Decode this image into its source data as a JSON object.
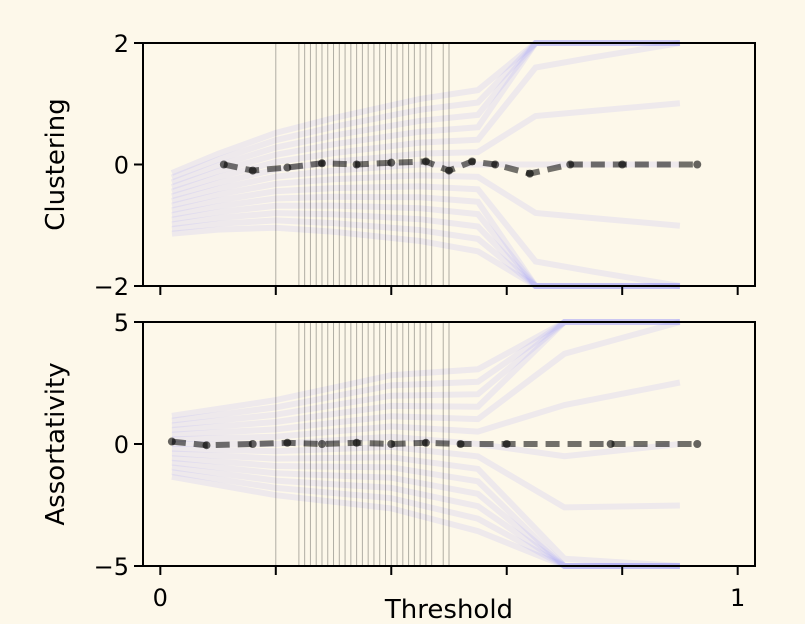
{
  "chart_data": [
    {
      "type": "line",
      "ylabel": "Clustering",
      "xlim": [
        -0.03,
        1.03
      ],
      "ylim": [
        -2,
        2
      ],
      "yticks": [
        2,
        0,
        -2
      ],
      "ytick_labels": [
        "2",
        "0",
        "−2"
      ],
      "xticks": [
        0,
        0.2,
        0.4,
        0.6,
        0.8,
        1.0
      ],
      "show_x_tick_labels": false,
      "grid": false,
      "series": [
        {
          "style": "dashed",
          "color": "#000000",
          "points": [
            [
              0.11,
              0.0
            ],
            [
              0.16,
              -0.1
            ],
            [
              0.22,
              -0.05
            ],
            [
              0.28,
              0.02
            ],
            [
              0.34,
              0.0
            ],
            [
              0.4,
              0.03
            ],
            [
              0.46,
              0.05
            ],
            [
              0.5,
              -0.1
            ],
            [
              0.54,
              0.05
            ],
            [
              0.58,
              0.0
            ],
            [
              0.64,
              -0.15
            ],
            [
              0.71,
              0.0
            ],
            [
              0.8,
              0.0
            ],
            [
              0.93,
              0.0
            ]
          ]
        }
      ],
      "ensemble_band": {
        "color": "#8080ff",
        "points": [
          [
            0.02,
            -0.6
          ],
          [
            0.1,
            -0.4
          ],
          [
            0.2,
            -0.2
          ],
          [
            0.3,
            -0.1
          ],
          [
            0.45,
            0.0
          ],
          [
            0.55,
            0.0
          ],
          [
            0.65,
            0.0
          ],
          [
            0.75,
            0.0
          ],
          [
            0.9,
            0.0
          ]
        ]
      },
      "threshold_lines": [
        0.2,
        0.24,
        0.25,
        0.26,
        0.27,
        0.28,
        0.29,
        0.3,
        0.31,
        0.32,
        0.33,
        0.34,
        0.35,
        0.36,
        0.37,
        0.38,
        0.39,
        0.4,
        0.41,
        0.42,
        0.43,
        0.44,
        0.45,
        0.46,
        0.47,
        0.49,
        0.5
      ]
    },
    {
      "type": "line",
      "ylabel": "Assortativity",
      "xlabel": "Threshold",
      "xlim": [
        -0.03,
        1.03
      ],
      "ylim": [
        -5,
        5
      ],
      "yticks": [
        5,
        0,
        -5
      ],
      "ytick_labels": [
        "5",
        "0",
        "−5"
      ],
      "xticks": [
        0,
        0.2,
        0.4,
        0.6,
        0.8,
        1.0
      ],
      "xtick_labels": [
        "0",
        "",
        "",
        "",
        "",
        "1"
      ],
      "grid": false,
      "series": [
        {
          "style": "dashed",
          "color": "#000000",
          "points": [
            [
              0.02,
              0.1
            ],
            [
              0.08,
              -0.05
            ],
            [
              0.16,
              0.0
            ],
            [
              0.22,
              0.05
            ],
            [
              0.28,
              0.0
            ],
            [
              0.34,
              0.05
            ],
            [
              0.4,
              0.0
            ],
            [
              0.46,
              0.05
            ],
            [
              0.52,
              0.0
            ],
            [
              0.6,
              0.0
            ],
            [
              0.78,
              0.0
            ],
            [
              0.93,
              0.0
            ]
          ]
        }
      ],
      "ensemble_band": {
        "color": "#8080ff",
        "points": [
          [
            0.02,
            0.0
          ],
          [
            0.2,
            0.0
          ],
          [
            0.4,
            0.3
          ],
          [
            0.55,
            0.0
          ],
          [
            0.7,
            -0.5
          ],
          [
            0.9,
            0.0
          ]
        ]
      },
      "threshold_lines": [
        0.2,
        0.24,
        0.25,
        0.26,
        0.27,
        0.28,
        0.29,
        0.3,
        0.31,
        0.32,
        0.33,
        0.34,
        0.35,
        0.36,
        0.37,
        0.38,
        0.39,
        0.4,
        0.41,
        0.42,
        0.43,
        0.44,
        0.45,
        0.46,
        0.47,
        0.49,
        0.5
      ]
    }
  ]
}
